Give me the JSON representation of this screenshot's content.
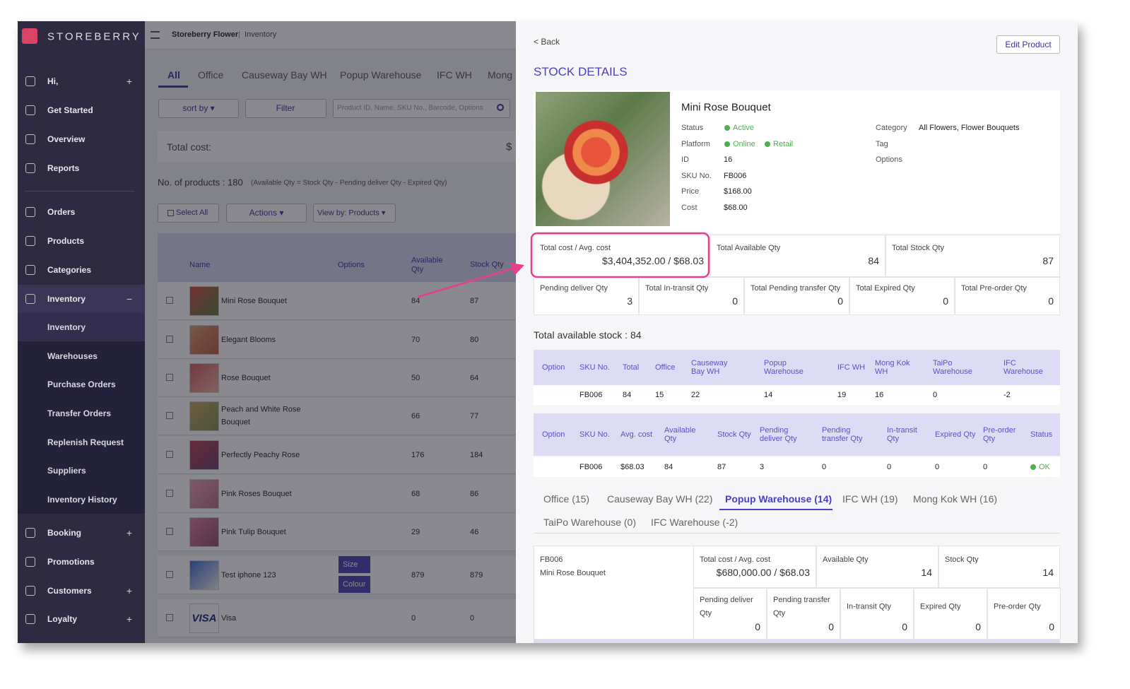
{
  "sidebar": {
    "brand": "STOREBERRY",
    "menu": [
      {
        "label": "Hi,",
        "toggle": "+"
      },
      {
        "label": "Get Started"
      },
      {
        "label": "Overview"
      },
      {
        "label": "Reports"
      },
      {
        "label": "Orders"
      },
      {
        "label": "Products"
      },
      {
        "label": "Categories"
      },
      {
        "label": "Inventory",
        "toggle": "−"
      }
    ],
    "submenu": [
      "Inventory",
      "Warehouses",
      "Purchase Orders",
      "Transfer Orders",
      "Replenish Request",
      "Suppliers",
      "Inventory History"
    ],
    "menu_lower": [
      {
        "label": "Booking",
        "toggle": "+"
      },
      {
        "label": "Promotions"
      },
      {
        "label": "Customers",
        "toggle": "+"
      },
      {
        "label": "Loyalty",
        "toggle": "+"
      }
    ]
  },
  "list": {
    "breadcrumb": {
      "store": "Storeberry Flower",
      "separator": "|",
      "page": "Inventory"
    },
    "tabs": [
      "All",
      "Office",
      "Causeway Bay WH",
      "Popup Warehouse",
      "IFC WH",
      "Mong"
    ],
    "sort": "sort by ▾",
    "filter": "Filter",
    "search_placeholder": "Product ID, Name, SKU No., Barcode, Options",
    "total_cost_label": "Total cost:",
    "total_cost_value": "$",
    "products_count": "No. of products : 180",
    "formula": "(Available Qty = Stock Qty - Pending deliver Qty - Expired Qty)",
    "select_all": "Select All",
    "actions": "Actions ▾",
    "view_by": "View by: Products ▾",
    "columns": [
      "Name",
      "Options",
      "Available Qty",
      "Stock Qty"
    ],
    "rows": [
      {
        "name": "Mini Rose Bouquet",
        "available": 84,
        "stock": 87
      },
      {
        "name": "Elegant Blooms",
        "available": 70,
        "stock": 80
      },
      {
        "name": "Rose Bouquet",
        "available": 50,
        "stock": 64
      },
      {
        "name": "Peach and White Rose Bouquet",
        "available": 66,
        "stock": 77
      },
      {
        "name": "Perfectly Peachy Rose",
        "available": 176,
        "stock": 184
      },
      {
        "name": "Pink Roses Bouquet",
        "available": 68,
        "stock": 86
      },
      {
        "name": "Pink Tulip Bouquet",
        "available": 29,
        "stock": 46
      },
      {
        "name": "Test iphone 123",
        "options": [
          "Size",
          "Colour"
        ],
        "available": 879,
        "stock": 879
      },
      {
        "name": "Visa",
        "thumb_text": "VISA",
        "available": 0,
        "stock": 0
      }
    ]
  },
  "detail": {
    "back": "< Back",
    "edit": "Edit Product",
    "title": "STOCK DETAILS",
    "product": {
      "name": "Mini Rose Bouquet",
      "fields": [
        {
          "label": "Status",
          "values": [
            "Active"
          ]
        },
        {
          "label": "Platform",
          "values": [
            "Online",
            "Retail"
          ]
        },
        {
          "label": "ID",
          "value": "16"
        },
        {
          "label": "SKU No.",
          "value": "FB006"
        },
        {
          "label": "Price",
          "value": "$168.00"
        },
        {
          "label": "Cost",
          "value": "$68.00"
        }
      ],
      "fields_right": [
        {
          "label": "Category",
          "value": "All Flowers, Flower Bouquets"
        },
        {
          "label": "Tag"
        },
        {
          "label": "Options"
        }
      ]
    },
    "summary": [
      {
        "label": "Total cost / Avg. cost",
        "value": "$3,404,352.00 / $68.03"
      },
      {
        "label": "Total Available Qty",
        "value": 84
      },
      {
        "label": "Total Stock Qty",
        "value": 87
      }
    ],
    "summary2": [
      {
        "label": "Pending deliver Qty",
        "value": 3
      },
      {
        "label": "Total In-transit Qty",
        "value": 0
      },
      {
        "label": "Total Pending transfer Qty",
        "value": 0
      },
      {
        "label": "Total Expired Qty",
        "value": 0
      },
      {
        "label": "Total Pre-order Qty",
        "value": 0
      }
    ],
    "available_stock": "Total available stock : 84",
    "table1": {
      "columns": [
        "Option",
        "SKU No.",
        "Total",
        "Office",
        "Causeway Bay WH",
        "Popup Warehouse",
        "IFC WH",
        "Mong Kok WH",
        "TaiPo Warehouse",
        "IFC Warehouse"
      ],
      "row": [
        "FB006",
        84,
        15,
        22,
        14,
        19,
        16,
        0,
        -2
      ]
    },
    "table2": {
      "columns": [
        "Option",
        "SKU No.",
        "Avg. cost",
        "Available Qty",
        "Stock Qty",
        "Pending deliver Qty",
        "Pending transfer Qty",
        "In-transit Qty",
        "Expired Qty",
        "Pre-order Qty",
        "Status"
      ],
      "row": [
        "FB006",
        "$68.03",
        84,
        87,
        3,
        0,
        0,
        0,
        0,
        "OK"
      ]
    },
    "tabs": [
      {
        "label": "Office (15)"
      },
      {
        "label": "Causeway Bay WH (22)"
      },
      {
        "label": "Popup Warehouse (14)",
        "active": true
      },
      {
        "label": "IFC WH (19)"
      },
      {
        "label": "Mong Kok WH (16)"
      },
      {
        "label": "TaiPo Warehouse (0)"
      },
      {
        "label": "IFC Warehouse (-2)"
      }
    ],
    "card": {
      "sku": "FB006",
      "name": "Mini Rose Bouquet",
      "top": [
        {
          "label": "Total cost / Avg. cost",
          "value": "$680,000.00 / $68.03"
        },
        {
          "label": "Available Qty",
          "value": 14
        },
        {
          "label": "Stock Qty",
          "value": 14
        }
      ],
      "bottom": [
        {
          "label": "Pending deliver Qty",
          "value": 0
        },
        {
          "label": "Pending transfer Qty",
          "value": 0
        },
        {
          "label": "In-transit Qty",
          "value": 0
        },
        {
          "label": "Expired Qty",
          "value": 0
        },
        {
          "label": "Pre-order Qty",
          "value": 0
        }
      ]
    }
  }
}
